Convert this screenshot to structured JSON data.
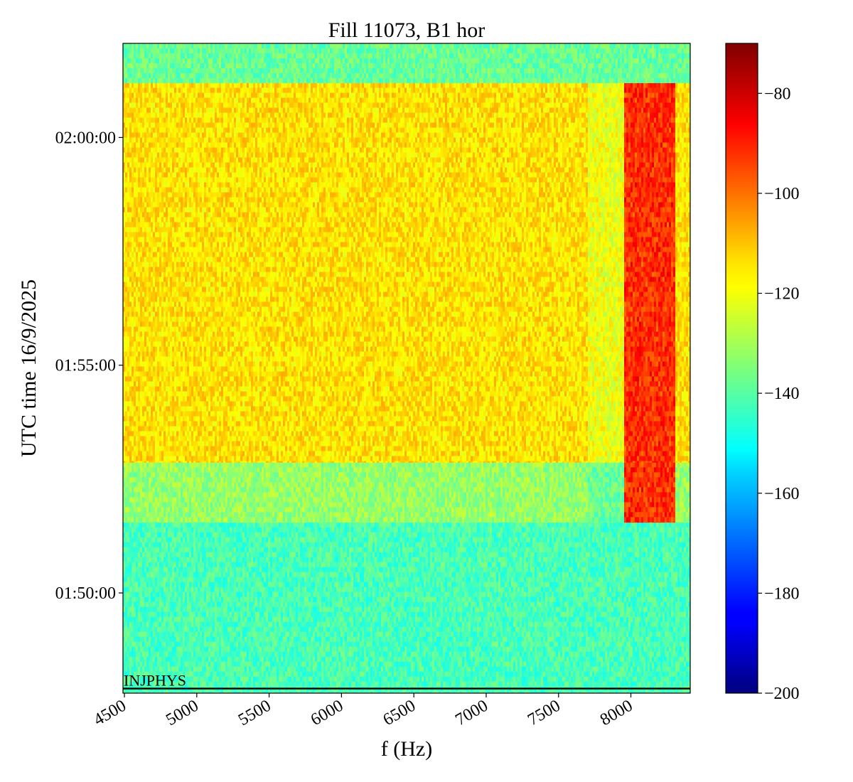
{
  "chart_data": {
    "type": "heatmap",
    "title": "Fill 11073, B1 hor",
    "xlabel": "f (Hz)",
    "ylabel": "UTC time 16/9/2025",
    "xlim": [
      4490,
      8410
    ],
    "ylim": [
      "01:47:48",
      "02:02:04"
    ],
    "x_ticks": [
      4500,
      5000,
      5500,
      6000,
      6500,
      7000,
      7500,
      8000
    ],
    "x_tick_labels": [
      "4500",
      "5000",
      "5500",
      "6000",
      "6500",
      "7000",
      "7500",
      "8000"
    ],
    "y_ticks": [
      "01:50:00",
      "01:55:00",
      "02:00:00"
    ],
    "y_tick_labels": [
      "01:50:00",
      "01:55:00",
      "02:00:00"
    ],
    "colorbar": {
      "colormap": "jet",
      "range": [
        -200,
        -70
      ],
      "ticks": [
        -200,
        -180,
        -160,
        -140,
        -120,
        -100,
        -80
      ],
      "tick_labels": [
        "−200",
        "−180",
        "−160",
        "−140",
        "−120",
        "−100",
        "−80"
      ]
    },
    "regions": [
      {
        "time_start": "01:47:48",
        "time_end": "01:51:33",
        "level_dB": -142
      },
      {
        "time_start": "01:51:33",
        "time_end": "01:52:52",
        "level_dB": -132
      },
      {
        "time_start": "01:52:52",
        "time_end": "02:01:12",
        "level_dB": -115
      },
      {
        "time_start": "02:01:12",
        "time_end": "02:02:04",
        "level_dB": -138
      }
    ],
    "hot_band": {
      "f_start": 7950,
      "f_end": 8300,
      "time_start": "01:51:33",
      "time_end": "02:01:12",
      "level_dB": -92
    },
    "annotations": [
      {
        "text": "INJPHYS",
        "time": "01:47:54"
      }
    ]
  }
}
